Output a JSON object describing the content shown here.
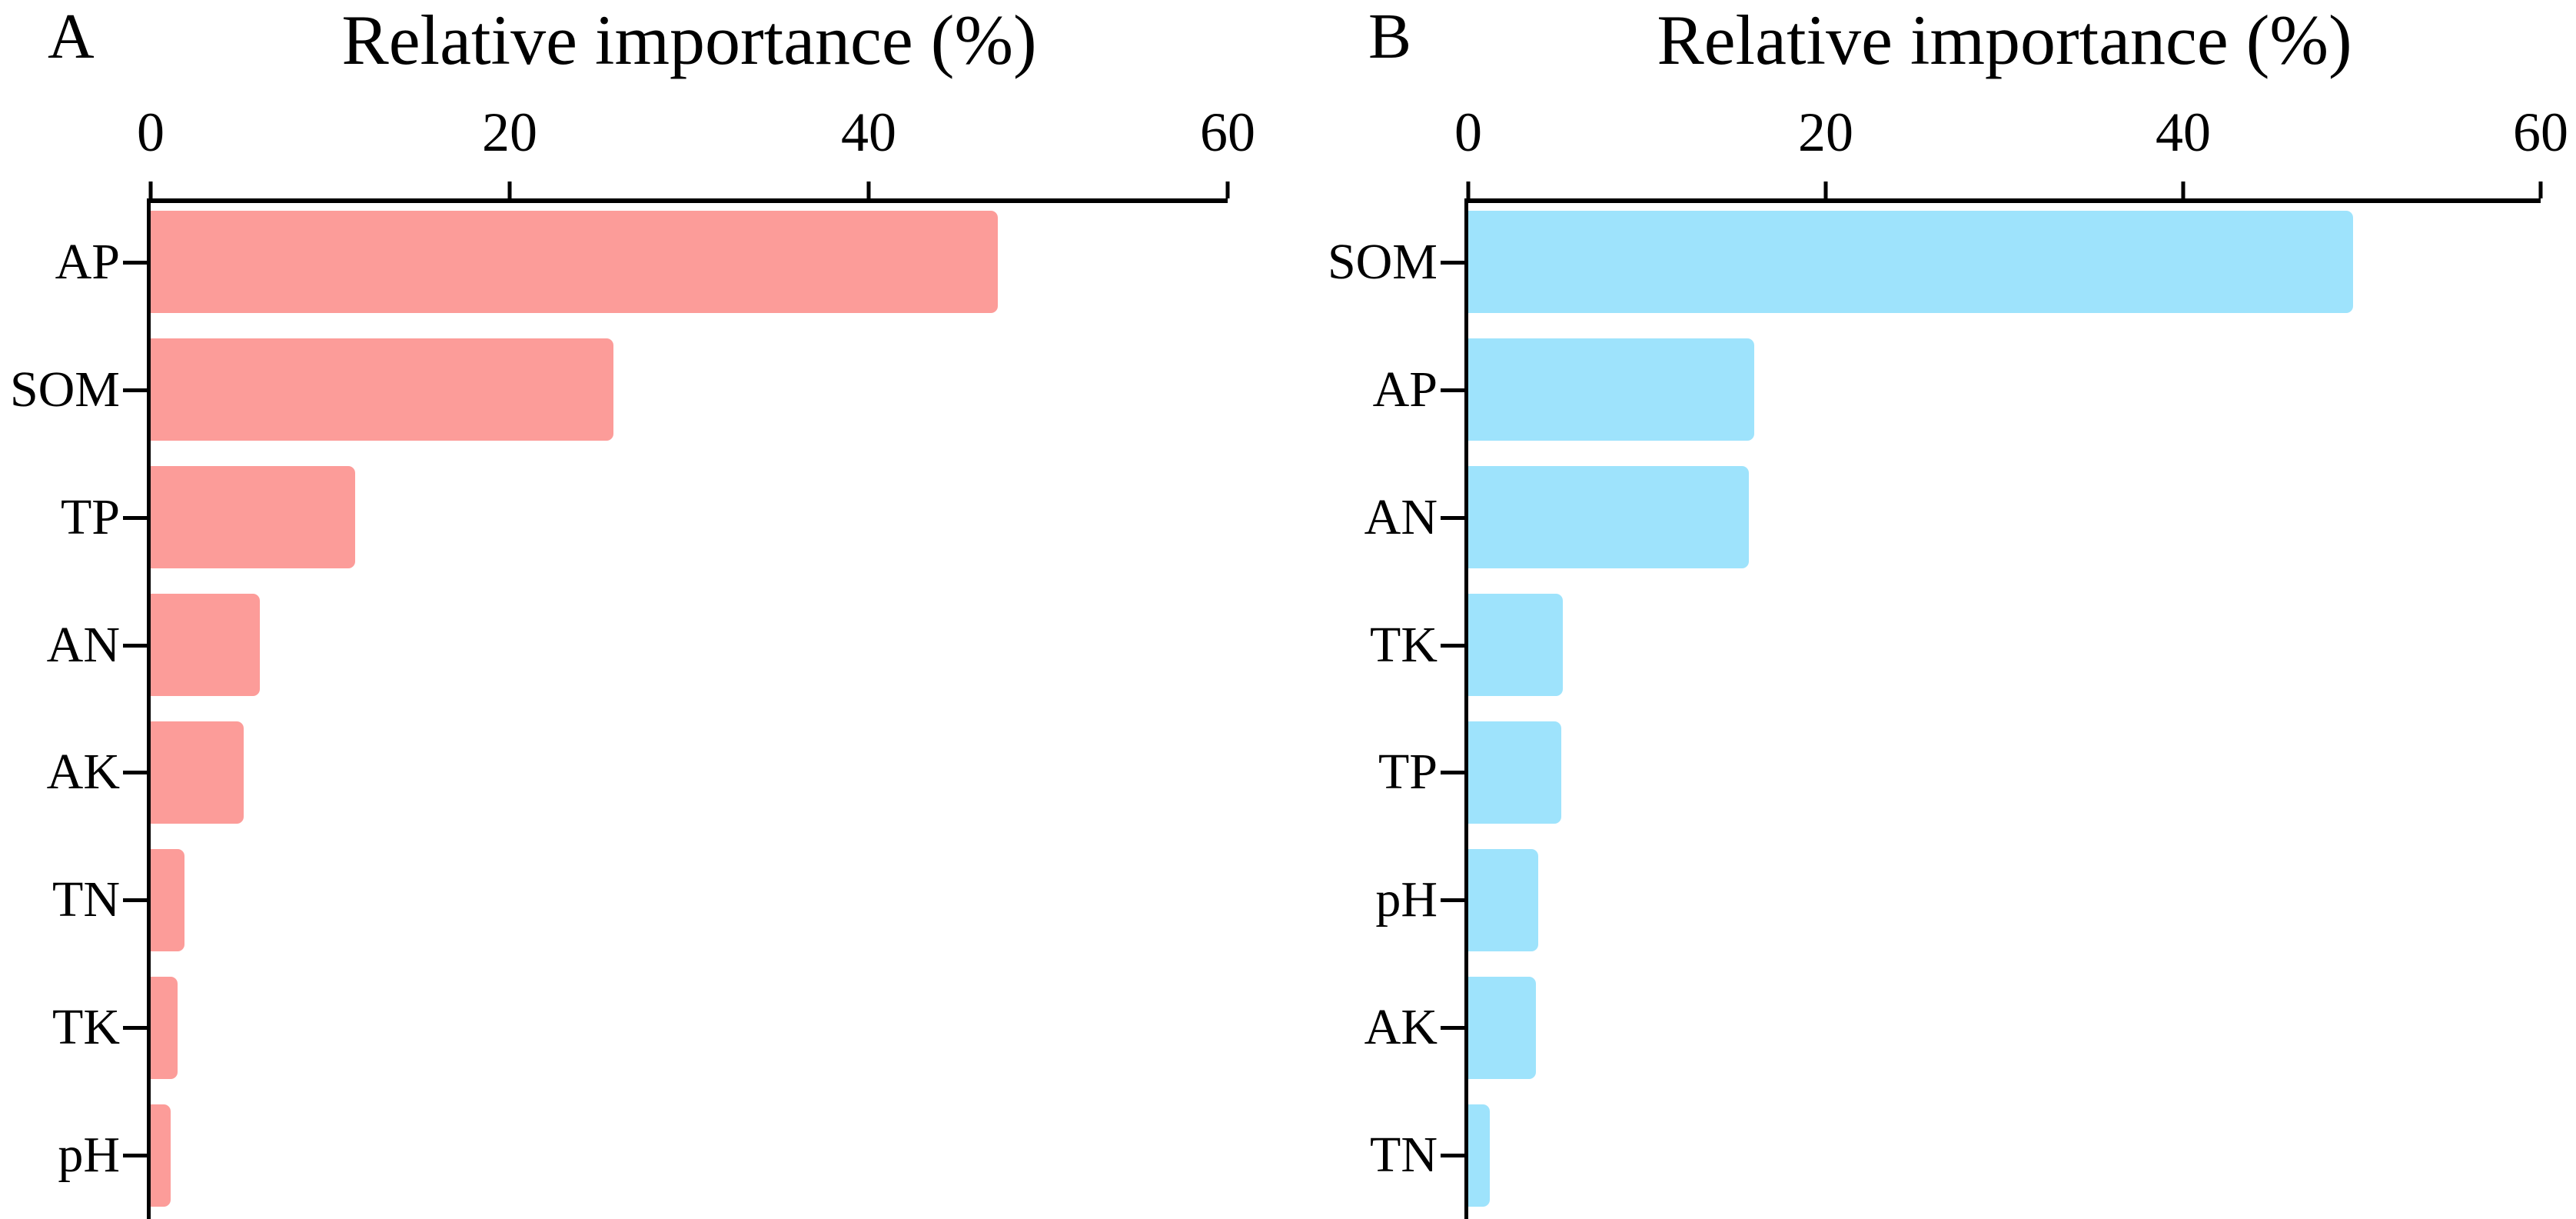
{
  "chart_data": [
    {
      "type": "bar",
      "orientation": "horizontal",
      "panel_label": "A",
      "title": "Relative importance (%)",
      "categories": [
        "AP",
        "SOM",
        "TP",
        "AN",
        "AK",
        "TN",
        "TK",
        "pH"
      ],
      "values": [
        47.2,
        25.8,
        11.4,
        6.1,
        5.2,
        1.9,
        1.5,
        1.1
      ],
      "bar_color": "#FC9C99",
      "xlim": [
        0,
        60
      ],
      "x_ticks": [
        0,
        20,
        40,
        60
      ],
      "grid": false,
      "axis_position": "top",
      "bars_sorted_descending": true
    },
    {
      "type": "bar",
      "orientation": "horizontal",
      "panel_label": "B",
      "title": "Relative importance (%)",
      "categories": [
        "SOM",
        "AP",
        "AN",
        "TK",
        "TP",
        "pH",
        "AK",
        "TN"
      ],
      "values": [
        49.5,
        16.0,
        15.7,
        5.3,
        5.2,
        3.9,
        3.8,
        1.2
      ],
      "bar_color": "#9EE3FC",
      "xlim": [
        0,
        60
      ],
      "x_ticks": [
        0,
        20,
        40,
        60
      ],
      "grid": false,
      "axis_position": "top",
      "bars_sorted_descending": true
    }
  ],
  "figure": {
    "background": "#ffffff",
    "axis_color": "#000000",
    "text_color": "#000000"
  }
}
